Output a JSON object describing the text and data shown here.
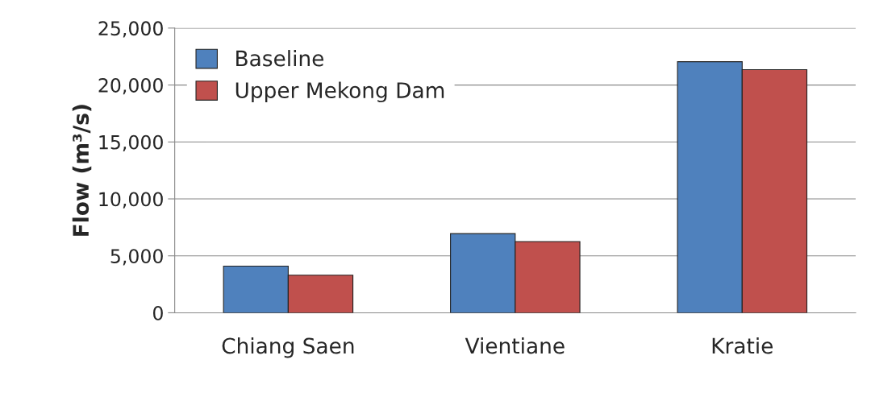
{
  "chart_data": {
    "type": "bar",
    "ylabel": "Flow (m³/s)",
    "categories": [
      "Chiang Saen",
      "Vientiane",
      "Kratie"
    ],
    "series": [
      {
        "name": "Baseline",
        "color": "#4f81bd",
        "values": [
          4100,
          6950,
          22050
        ]
      },
      {
        "name": "Upper Mekong Dam",
        "color": "#c0504d",
        "values": [
          3300,
          6250,
          21350
        ]
      }
    ],
    "ylim": [
      0,
      25000
    ],
    "yticks": [
      {
        "value": 0,
        "label": "0"
      },
      {
        "value": 5000,
        "label": "5,000"
      },
      {
        "value": 10000,
        "label": "10,000"
      },
      {
        "value": 15000,
        "label": "15,000"
      },
      {
        "value": 20000,
        "label": "20,000"
      },
      {
        "value": 25000,
        "label": "25,000"
      }
    ],
    "grid": "y",
    "legend": "top left"
  }
}
